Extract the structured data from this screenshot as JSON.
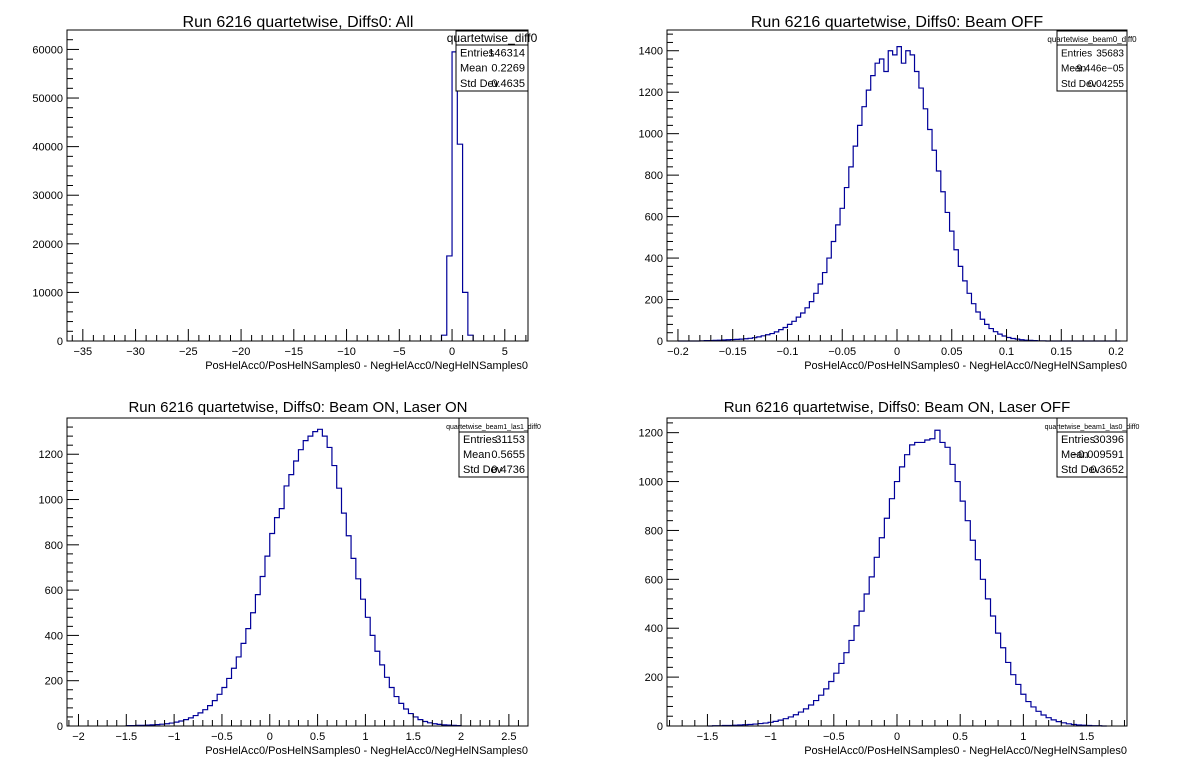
{
  "chart_data": [
    {
      "type": "bar",
      "title": "Run 6216 quartetwise, Diffs0: All",
      "xlabel": "PosHelAcc0/PosHelNSamples0 - NegHelAcc0/NegHelNSamples0",
      "ylabel": "",
      "xlim": [
        -36.5,
        7.2
      ],
      "ylim": [
        0,
        64000
      ],
      "xticks": [
        -35,
        -30,
        -25,
        -20,
        -15,
        -10,
        -5,
        0,
        5
      ],
      "yticks": [
        0,
        10000,
        20000,
        30000,
        40000,
        50000,
        60000
      ],
      "x": [
        -0.75,
        -0.25,
        0.25,
        0.75,
        1.25,
        1.75
      ],
      "values": [
        1200,
        17500,
        59500,
        40500,
        10000,
        1200
      ],
      "grid": false,
      "stats": {
        "name": "quartetwise_diff0",
        "rows": [
          {
            "label": "Entries",
            "value": "146314"
          },
          {
            "label": "Mean",
            "value": "0.2269"
          },
          {
            "label": "Std Dev",
            "value": "0.4635"
          }
        ]
      }
    },
    {
      "type": "bar",
      "title": "Run 6216 quartetwise, Diffs0: Beam OFF",
      "xlabel": "PosHelAcc0/PosHelNSamples0 - NegHelAcc0/NegHelNSamples0",
      "ylabel": "",
      "xlim": [
        -0.21,
        0.21
      ],
      "ylim": [
        0,
        1500
      ],
      "xticks": [
        -0.2,
        -0.15,
        -0.1,
        -0.05,
        0,
        0.05,
        0.1,
        0.15,
        0.2
      ],
      "yticks": [
        0,
        200,
        400,
        600,
        800,
        1000,
        1200,
        1400
      ],
      "bin_start": -0.2,
      "bin_width": 0.004,
      "values": [
        0,
        0,
        0,
        0,
        0,
        1,
        2,
        2,
        3,
        4,
        5,
        6,
        7,
        8,
        9,
        11,
        13,
        16,
        20,
        25,
        30,
        36,
        44,
        55,
        65,
        80,
        95,
        115,
        135,
        160,
        190,
        230,
        275,
        330,
        400,
        480,
        560,
        640,
        740,
        840,
        940,
        1040,
        1130,
        1210,
        1280,
        1340,
        1360,
        1300,
        1400,
        1380,
        1420,
        1340,
        1400,
        1380,
        1300,
        1220,
        1120,
        1020,
        920,
        820,
        720,
        620,
        530,
        440,
        360,
        290,
        230,
        180,
        140,
        105,
        80,
        60,
        45,
        33,
        24,
        17,
        12,
        9,
        6,
        4,
        3,
        2,
        1,
        1,
        0,
        0,
        0,
        0,
        0,
        0,
        0,
        0,
        0,
        0,
        0,
        0,
        0,
        0,
        0,
        0,
        0
      ],
      "grid": false,
      "stats": {
        "name": "quartetwise_beam0_diff0",
        "rows": [
          {
            "label": "Entries",
            "value": "35683"
          },
          {
            "label": "Mean",
            "value": "−9.446e−05"
          },
          {
            "label": "Std Dev",
            "value": "0.04255"
          }
        ]
      }
    },
    {
      "type": "bar",
      "title": "Run 6216 quartetwise, Diffs0: Beam ON, Laser ON",
      "xlabel": "PosHelAcc0/PosHelNSamples0 - NegHelAcc0/NegHelNSamples0",
      "ylabel": "",
      "xlim": [
        -2.12,
        2.7
      ],
      "ylim": [
        0,
        1360
      ],
      "xticks": [
        -2,
        -1.5,
        -1,
        -0.5,
        0,
        0.5,
        1,
        1.5,
        2,
        2.5
      ],
      "yticks": [
        0,
        200,
        400,
        600,
        800,
        1000,
        1200
      ],
      "bin_start": -1.5,
      "bin_width": 0.05,
      "values": [
        2,
        2,
        3,
        3,
        4,
        5,
        6,
        8,
        10,
        13,
        17,
        22,
        28,
        36,
        46,
        58,
        72,
        90,
        112,
        140,
        170,
        210,
        255,
        305,
        365,
        430,
        500,
        580,
        660,
        750,
        850,
        920,
        960,
        1060,
        1110,
        1170,
        1220,
        1260,
        1280,
        1300,
        1310,
        1280,
        1230,
        1150,
        1050,
        940,
        840,
        740,
        650,
        560,
        480,
        400,
        330,
        270,
        215,
        170,
        130,
        100,
        75,
        55,
        40,
        28,
        20,
        14,
        10,
        7,
        5,
        4,
        3,
        2
      ],
      "grid": false,
      "stats": {
        "name": "quartetwise_beam1_las1_diff0",
        "rows": [
          {
            "label": "Entries",
            "value": "31153"
          },
          {
            "label": "Mean",
            "value": "0.5655"
          },
          {
            "label": "Std Dev",
            "value": "0.4736"
          }
        ]
      }
    },
    {
      "type": "bar",
      "title": "Run 6216 quartetwise, Diffs0: Beam ON, Laser OFF",
      "xlabel": "PosHelAcc0/PosHelNSamples0 - NegHelAcc0/NegHelNSamples0",
      "ylabel": "",
      "xlim": [
        -1.82,
        1.82
      ],
      "ylim": [
        0,
        1260
      ],
      "xticks": [
        -1.5,
        -1,
        -0.5,
        0,
        0.5,
        1,
        1.5
      ],
      "yticks": [
        0,
        200,
        400,
        600,
        800,
        1000,
        1200
      ],
      "bin_start": -1.5,
      "bin_width": 0.04,
      "values": [
        0,
        1,
        1,
        2,
        2,
        3,
        4,
        5,
        6,
        8,
        10,
        12,
        15,
        19,
        24,
        30,
        37,
        46,
        57,
        70,
        86,
        104,
        126,
        152,
        182,
        216,
        256,
        300,
        350,
        410,
        470,
        540,
        610,
        690,
        770,
        850,
        930,
        1000,
        1060,
        1110,
        1150,
        1160,
        1160,
        1170,
        1175,
        1210,
        1160,
        1140,
        1070,
        1000,
        920,
        840,
        760,
        680,
        600,
        520,
        450,
        380,
        320,
        260,
        210,
        170,
        130,
        100,
        78,
        60,
        45,
        34,
        25,
        18,
        13,
        9,
        6,
        4,
        3,
        2,
        1,
        1,
        0
      ],
      "grid": false,
      "stats": {
        "name": "quartetwise_beam1_las0_diff0",
        "rows": [
          {
            "label": "Entries",
            "value": "30396"
          },
          {
            "label": "Mean",
            "value": "−0.009591"
          },
          {
            "label": "Std Dev",
            "value": "0.3652"
          }
        ]
      }
    }
  ]
}
